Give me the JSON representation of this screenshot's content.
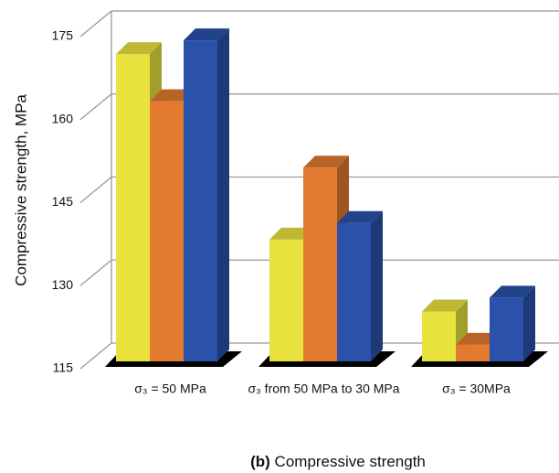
{
  "chart_data": {
    "type": "bar3d",
    "y_label": "Compressive strength, MPa",
    "caption_label": "(b)",
    "caption": "Compressive strength",
    "categories": [
      "σ₃ = 50 MPa",
      "σ₃ from 50 MPa to 30 MPa",
      "σ₃ = 30MPa"
    ],
    "series": [
      {
        "color": "#e8e23e",
        "values": [
          170.5,
          137,
          124
        ]
      },
      {
        "color": "#e27a30",
        "values": [
          162,
          150,
          118
        ]
      },
      {
        "color": "#2a52aa",
        "values": [
          173,
          140,
          126.5
        ]
      }
    ],
    "ylim": [
      115,
      175
    ],
    "yticks": [
      115,
      130,
      145,
      160,
      175
    ],
    "grid": true
  }
}
